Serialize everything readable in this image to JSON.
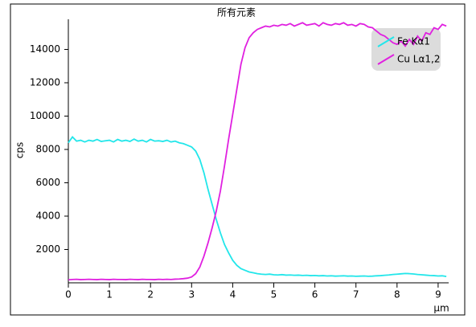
{
  "chart_data": {
    "type": "line",
    "title": "所有元素",
    "x_label": "μm",
    "y_label": "cps",
    "x": [
      0,
      0.1,
      0.2,
      0.3,
      0.4,
      0.5,
      0.6,
      0.7,
      0.8,
      0.9,
      1,
      1.1,
      1.2,
      1.3,
      1.4,
      1.5,
      1.6,
      1.7,
      1.8,
      1.9,
      2,
      2.1,
      2.2,
      2.3,
      2.4,
      2.5,
      2.6,
      2.7,
      2.8,
      2.9,
      3,
      3.1,
      3.2,
      3.3,
      3.4,
      3.5,
      3.6,
      3.7,
      3.8,
      3.9,
      4,
      4.1,
      4.2,
      4.3,
      4.4,
      4.5,
      4.6,
      4.7,
      4.8,
      4.9,
      5,
      5.1,
      5.2,
      5.3,
      5.4,
      5.5,
      5.6,
      5.7,
      5.8,
      5.9,
      6,
      6.1,
      6.2,
      6.3,
      6.4,
      6.5,
      6.6,
      6.7,
      6.8,
      6.9,
      7,
      7.1,
      7.2,
      7.3,
      7.4,
      7.5,
      7.6,
      7.7,
      7.8,
      7.9,
      8,
      8.1,
      8.2,
      8.3,
      8.4,
      8.5,
      8.6,
      8.7,
      8.8,
      8.9,
      9,
      9.1,
      9.2
    ],
    "series": [
      {
        "name": "Fe Kα1",
        "color": "#22e6ea",
        "values": [
          8400,
          8750,
          8500,
          8550,
          8450,
          8550,
          8500,
          8600,
          8480,
          8520,
          8550,
          8450,
          8600,
          8500,
          8550,
          8480,
          8620,
          8500,
          8550,
          8450,
          8600,
          8500,
          8520,
          8480,
          8550,
          8450,
          8500,
          8400,
          8350,
          8250,
          8150,
          7900,
          7400,
          6600,
          5600,
          4700,
          3800,
          3000,
          2300,
          1800,
          1350,
          1050,
          850,
          750,
          650,
          600,
          550,
          520,
          500,
          520,
          480,
          470,
          490,
          460,
          470,
          450,
          460,
          440,
          450,
          430,
          440,
          420,
          430,
          410,
          420,
          400,
          410,
          420,
          400,
          410,
          390,
          400,
          410,
          390,
          400,
          420,
          430,
          450,
          470,
          500,
          520,
          540,
          560,
          550,
          530,
          500,
          480,
          460,
          440,
          430,
          410,
          420,
          380
        ]
      },
      {
        "name": "Cu Lα1,2",
        "color": "#e020e0",
        "values": [
          180,
          200,
          210,
          190,
          200,
          210,
          200,
          190,
          210,
          200,
          190,
          210,
          200,
          200,
          190,
          210,
          200,
          190,
          210,
          200,
          200,
          190,
          210,
          200,
          210,
          200,
          220,
          230,
          250,
          280,
          350,
          550,
          950,
          1600,
          2400,
          3300,
          4300,
          5500,
          7000,
          8600,
          10100,
          11600,
          13100,
          14100,
          14700,
          15000,
          15200,
          15300,
          15400,
          15350,
          15450,
          15400,
          15500,
          15450,
          15550,
          15400,
          15500,
          15600,
          15450,
          15500,
          15550,
          15400,
          15600,
          15500,
          15450,
          15550,
          15500,
          15600,
          15450,
          15500,
          15400,
          15550,
          15500,
          15350,
          15300,
          15100,
          14900,
          14800,
          14600,
          14400,
          14300,
          14500,
          14200,
          14600,
          14300,
          14800,
          14500,
          15000,
          14900,
          15300,
          15200,
          15500,
          15400
        ]
      }
    ],
    "xlim": [
      0,
      9.25
    ],
    "ylim": [
      0,
      15800
    ],
    "xticks": [
      0,
      1,
      2,
      3,
      4,
      5,
      6,
      7,
      8,
      9
    ],
    "yticks": [
      2000,
      4000,
      6000,
      8000,
      10000,
      12000,
      14000
    ],
    "legend": "upper-right"
  }
}
